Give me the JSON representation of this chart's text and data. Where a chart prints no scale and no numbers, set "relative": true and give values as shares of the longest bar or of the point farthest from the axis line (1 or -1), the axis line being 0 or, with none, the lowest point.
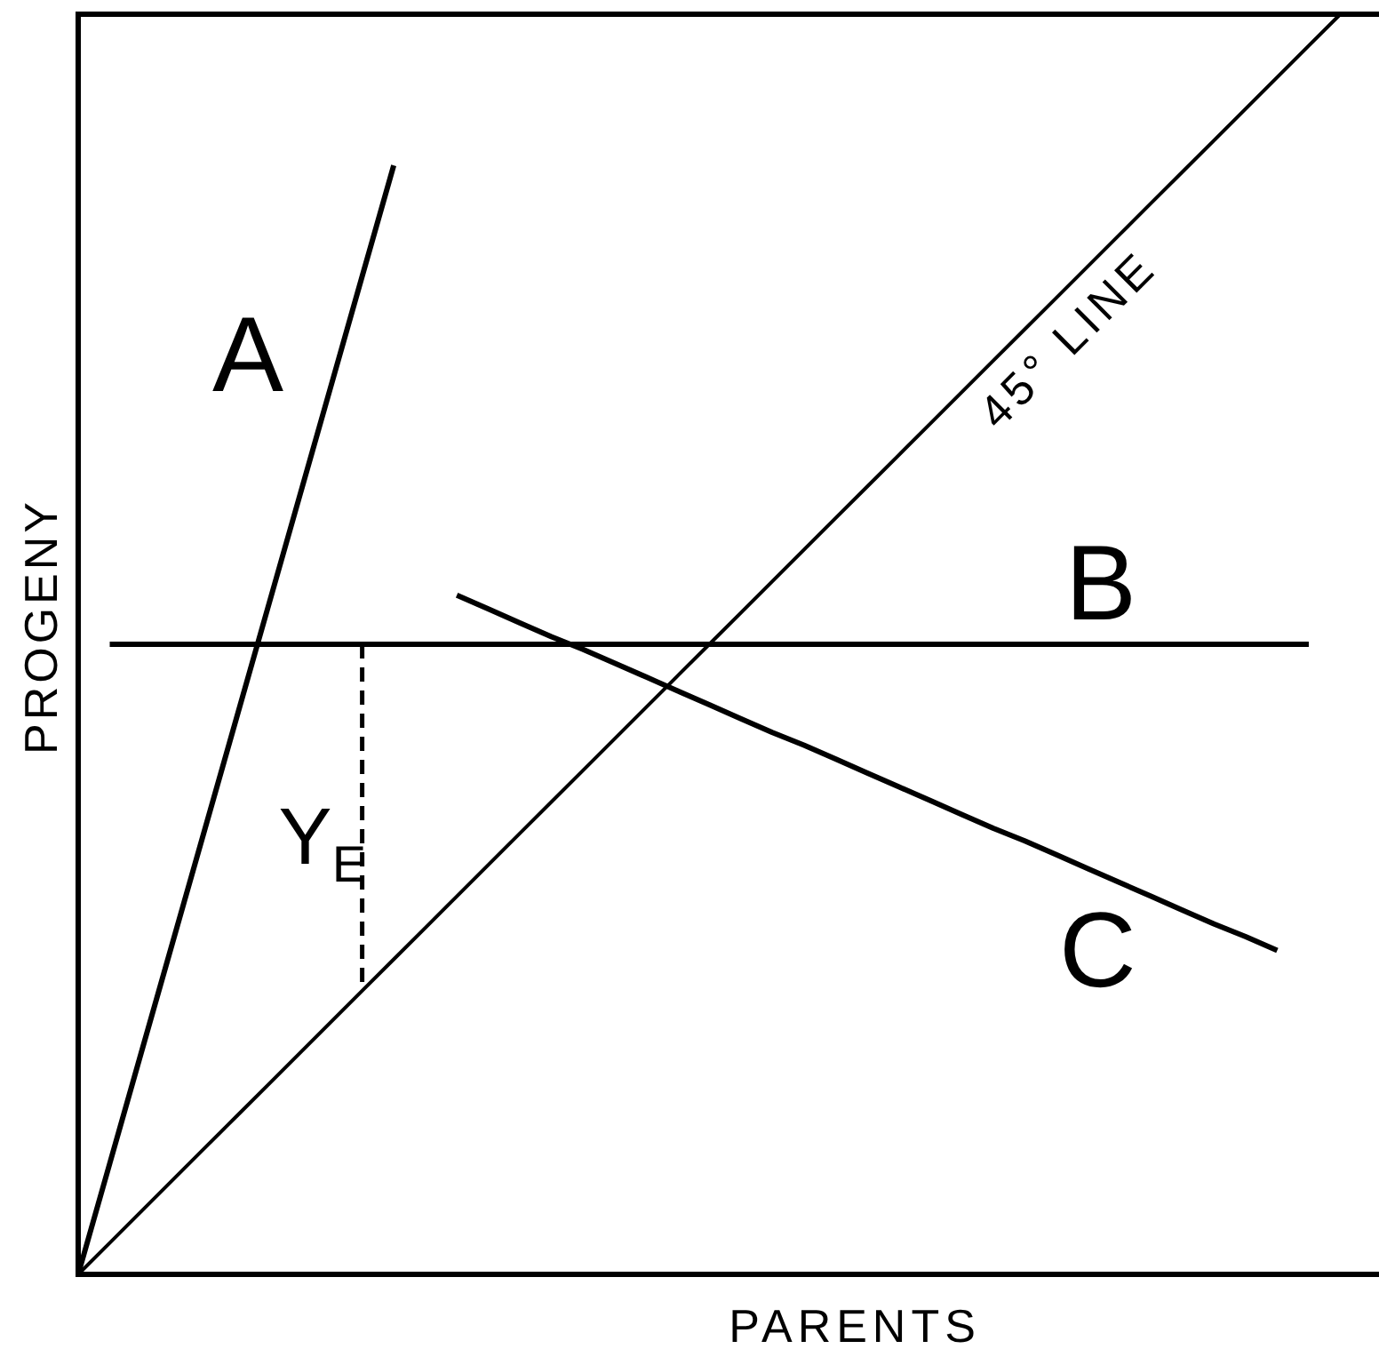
{
  "chart_data": {
    "type": "line",
    "xlabel": "PARENTS",
    "ylabel": "PROGENY",
    "relative": true,
    "categories": [
      null,
      null,
      null,
      null,
      null,
      null,
      null,
      null,
      null,
      null,
      null,
      null,
      null,
      null,
      null,
      null,
      null,
      null,
      null,
      null,
      null,
      null,
      null,
      null,
      null,
      null,
      null,
      null,
      null,
      null,
      null,
      null,
      null,
      null,
      null,
      null,
      null,
      null,
      null,
      null,
      null,
      null
    ],
    "annotations": [
      "Y$_{E}$"
    ],
    "series": [
      {
        "name": "A",
        "color": "#000000",
        "values": [
          0,
          0.088,
          0.176,
          0.264,
          0.352,
          0.44,
          0.528,
          0.616,
          0.704,
          0.792,
          0.88,
          null,
          null,
          null,
          null,
          null,
          null,
          null,
          null,
          null,
          null,
          null,
          null,
          null,
          null,
          null,
          null,
          null,
          null,
          null,
          null,
          null,
          null,
          null,
          null,
          null,
          null,
          null,
          null,
          null,
          null,
          null
        ]
      },
      {
        "name": "B",
        "color": "#000000",
        "values": [
          null,
          0.5,
          0.5,
          0.5,
          0.5,
          0.5,
          0.5,
          0.5,
          0.5,
          0.5,
          0.5,
          0.5,
          0.5,
          0.5,
          0.5,
          0.5,
          0.5,
          0.5,
          0.5,
          0.5,
          0.5,
          0.5,
          0.5,
          0.5,
          0.5,
          0.5,
          0.5,
          0.5,
          0.5,
          0.5,
          0.5,
          0.5,
          0.5,
          0.5,
          0.5,
          0.5,
          0.5,
          0.5,
          0.5,
          0.5,
          null,
          null
        ]
      },
      {
        "name": "C",
        "color": "#000000",
        "values": [
          null,
          null,
          null,
          null,
          null,
          null,
          null,
          null,
          null,
          null,
          null,
          null,
          0.539,
          0.528,
          0.517,
          0.506,
          0.496,
          0.485,
          0.474,
          0.463,
          0.452,
          0.441,
          0.43,
          0.42,
          0.409,
          0.398,
          0.387,
          0.376,
          0.365,
          0.354,
          0.344,
          0.333,
          0.322,
          0.311,
          0.3,
          0.289,
          0.278,
          0.268,
          0.257,
          null,
          null,
          null
        ]
      },
      {
        "name": "45° LINE",
        "color": "#000000",
        "values": [
          0,
          0.025,
          0.05,
          0.075,
          0.1,
          0.125,
          0.15,
          0.175,
          0.2,
          0.225,
          0.25,
          0.275,
          0.3,
          0.325,
          0.35,
          0.375,
          0.4,
          0.425,
          0.45,
          0.475,
          0.5,
          0.525,
          0.55,
          0.575,
          0.6,
          0.625,
          0.65,
          0.675,
          0.7,
          0.725,
          0.75,
          0.775,
          0.8,
          0.825,
          0.85,
          0.875,
          0.9,
          0.925,
          0.95,
          0.975,
          1,
          null
        ]
      }
    ]
  }
}
